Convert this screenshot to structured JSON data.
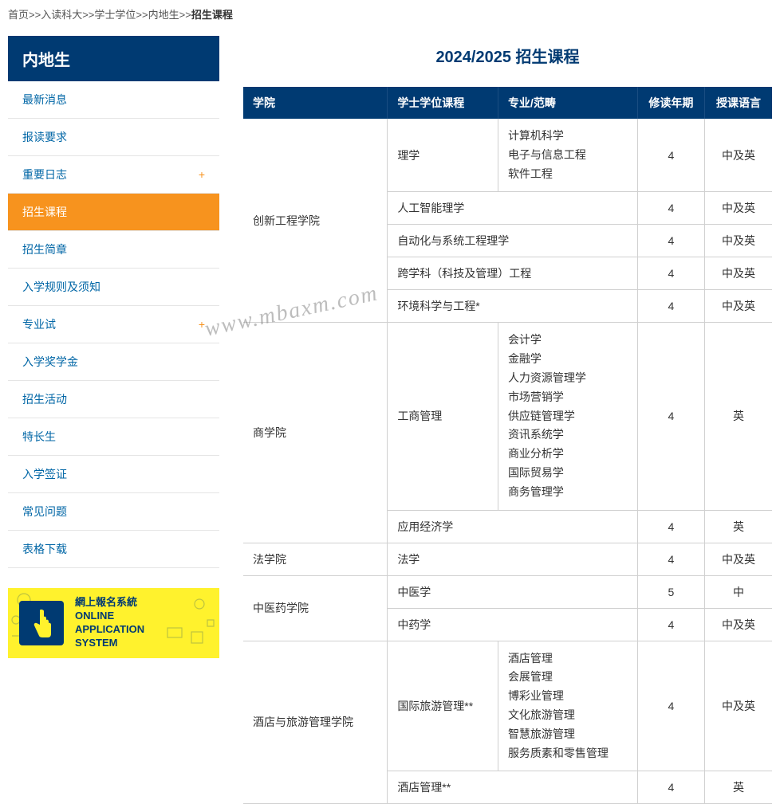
{
  "breadcrumb": {
    "items": [
      "首页",
      "入读科大",
      "学士学位",
      "内地生"
    ],
    "current": "招生课程",
    "sep": ">>"
  },
  "sidebar": {
    "header": "内地生",
    "items": [
      {
        "label": "最新消息",
        "expandable": false,
        "active": false
      },
      {
        "label": "报读要求",
        "expandable": false,
        "active": false
      },
      {
        "label": "重要日志",
        "expandable": true,
        "active": false
      },
      {
        "label": "招生课程",
        "expandable": false,
        "active": true
      },
      {
        "label": "招生简章",
        "expandable": false,
        "active": false
      },
      {
        "label": "入学规则及须知",
        "expandable": false,
        "active": false
      },
      {
        "label": "专业试",
        "expandable": true,
        "active": false
      },
      {
        "label": "入学奖学金",
        "expandable": false,
        "active": false
      },
      {
        "label": "招生活动",
        "expandable": false,
        "active": false
      },
      {
        "label": "特长生",
        "expandable": false,
        "active": false
      },
      {
        "label": "入学签证",
        "expandable": false,
        "active": false
      },
      {
        "label": "常见问题",
        "expandable": false,
        "active": false
      },
      {
        "label": "表格下载",
        "expandable": false,
        "active": false
      }
    ]
  },
  "banner": {
    "line1": "網上報名系統",
    "line2": "ONLINE",
    "line3": "APPLICATION",
    "line4": "SYSTEM"
  },
  "page_title": "2024/2025 招生课程",
  "watermark": "www.mbaxm.com",
  "table": {
    "columns": [
      "学院",
      "学士学位课程",
      "专业/范畴",
      "修读年期",
      "授课语言"
    ],
    "col_widths": [
      "150px",
      "115px",
      "145px",
      "70px",
      "70px"
    ],
    "colors": {
      "header_bg": "#003a72",
      "header_text": "#ffffff",
      "border": "#d0d0d0",
      "active_bg": "#f7931e",
      "banner_bg": "#fff22d"
    },
    "rows": [
      {
        "school": "创新工程学院",
        "school_rowspan": 5,
        "degree": "理学",
        "specs": [
          "计算机科学",
          "电子与信息工程",
          "软件工程"
        ],
        "year": "4",
        "lang": "中及英"
      },
      {
        "degree": "人工智能理学",
        "specs": [],
        "year": "4",
        "lang": "中及英"
      },
      {
        "degree": "自动化与系统工程理学",
        "specs": [],
        "year": "4",
        "lang": "中及英"
      },
      {
        "degree": "跨学科（科技及管理）工程",
        "specs": [],
        "year": "4",
        "lang": "中及英"
      },
      {
        "degree": "环境科学与工程*",
        "specs": [],
        "year": "4",
        "lang": "中及英"
      },
      {
        "school": "商学院",
        "school_rowspan": 2,
        "degree": "工商管理",
        "specs": [
          "会计学",
          "金融学",
          "人力资源管理学",
          "市场营销学",
          "供应链管理学",
          "资讯系统学",
          "商业分析学",
          "国际贸易学",
          "商务管理学"
        ],
        "year": "4",
        "lang": "英"
      },
      {
        "degree": "应用经济学",
        "specs": [],
        "year": "4",
        "lang": "英"
      },
      {
        "school": "法学院",
        "school_rowspan": 1,
        "degree": "法学",
        "specs": [],
        "year": "4",
        "lang": "中及英"
      },
      {
        "school": "中医药学院",
        "school_rowspan": 2,
        "degree": "中医学",
        "specs": [],
        "year": "5",
        "lang": "中"
      },
      {
        "degree": "中药学",
        "specs": [],
        "year": "4",
        "lang": "中及英"
      },
      {
        "school": "酒店与旅游管理学院",
        "school_rowspan": 2,
        "degree": "国际旅游管理**",
        "specs": [
          "酒店管理",
          "会展管理",
          "博彩业管理",
          "文化旅游管理",
          "智慧旅游管理",
          "服务质素和零售管理"
        ],
        "year": "4",
        "lang": "中及英"
      },
      {
        "degree": "酒店管理**",
        "specs": [],
        "year": "4",
        "lang": "英"
      }
    ]
  }
}
